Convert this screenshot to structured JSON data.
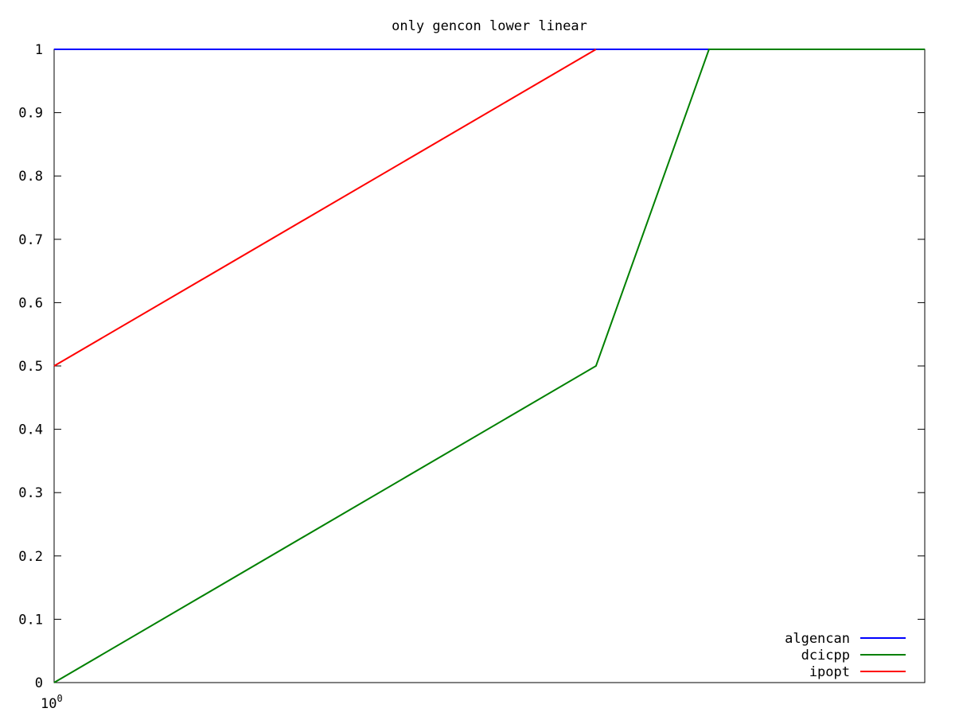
{
  "chart_data": {
    "type": "line",
    "title": "only gencon lower linear",
    "xlabel": "",
    "ylabel": "",
    "x_scale": "log",
    "ylim": [
      0,
      1
    ],
    "grid": false,
    "legend_position": "bottom-right",
    "y_ticks": [
      "0",
      "0.1",
      "0.2",
      "0.3",
      "0.4",
      "0.5",
      "0.6",
      "0.7",
      "0.8",
      "0.9",
      "1"
    ],
    "x_ticks": [
      {
        "base": "10",
        "exp": "0"
      }
    ],
    "series": [
      {
        "name": "algencan",
        "color": "#0000ff",
        "points": [
          {
            "x": 1,
            "y": 1
          },
          {
            "x": 4.5,
            "y": 1
          }
        ]
      },
      {
        "name": "dcicpp",
        "color": "#008000",
        "points": [
          {
            "x": 1,
            "y": 0
          },
          {
            "x": 2.55,
            "y": 0.5
          },
          {
            "x": 3.1,
            "y": 1
          },
          {
            "x": 4.5,
            "y": 1
          }
        ]
      },
      {
        "name": "ipopt",
        "color": "#ff0000",
        "points": [
          {
            "x": 1,
            "y": 0.5
          },
          {
            "x": 2.55,
            "y": 1
          }
        ]
      }
    ]
  }
}
